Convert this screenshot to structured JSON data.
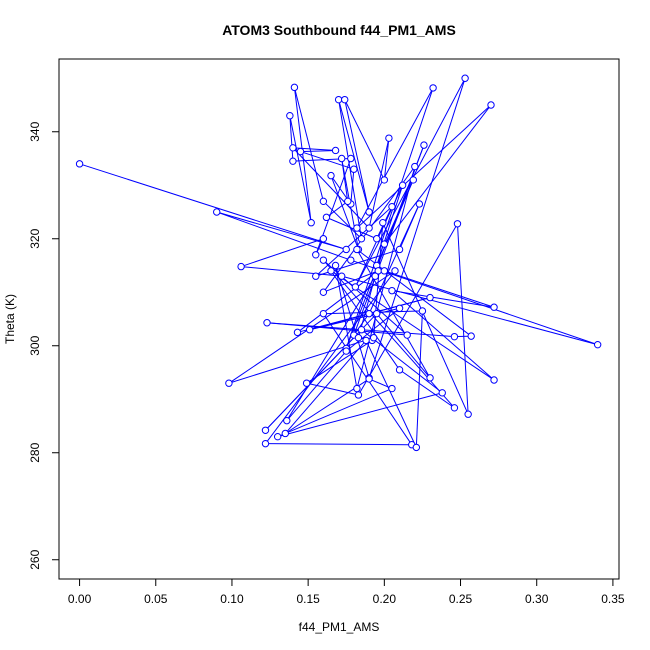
{
  "chart_data": {
    "type": "line",
    "title": "ATOM3 Southbound f44_PM1_AMS",
    "xlabel": "f44_PM1_AMS",
    "ylabel": "Theta (K)",
    "xlim": [
      -0.0135,
      0.354
    ],
    "ylim": [
      256.4,
      353.6
    ],
    "x_ticks": [
      0.0,
      0.05,
      0.1,
      0.15,
      0.2,
      0.25,
      0.3,
      0.35
    ],
    "x_tick_labels": [
      "0.00",
      "0.05",
      "0.10",
      "0.15",
      "0.20",
      "0.25",
      "0.30",
      "0.35"
    ],
    "y_ticks": [
      260,
      280,
      300,
      320,
      340
    ],
    "y_tick_labels": [
      "260",
      "280",
      "300",
      "320",
      "340"
    ],
    "grid": false,
    "colors": {
      "series": "#0000ff",
      "frame": "#000000",
      "background": "#ffffff"
    },
    "series": [
      {
        "marker": "open-circle",
        "points": [
          [
            0.0,
            334.0
          ],
          [
            0.175,
            318.0
          ],
          [
            0.09,
            325.0
          ],
          [
            0.178,
            316.0
          ],
          [
            0.34,
            300.2
          ],
          [
            0.172,
            313.0
          ],
          [
            0.106,
            314.8
          ],
          [
            0.16,
            320.0
          ],
          [
            0.155,
            317.0
          ],
          [
            0.178,
            335.0
          ],
          [
            0.14,
            334.5
          ],
          [
            0.138,
            343.0
          ],
          [
            0.152,
            323.0
          ],
          [
            0.141,
            348.3
          ],
          [
            0.16,
            327.0
          ],
          [
            0.185,
            320.0
          ],
          [
            0.17,
            346.0
          ],
          [
            0.19,
            325.0
          ],
          [
            0.174,
            346.0
          ],
          [
            0.2,
            331.0
          ],
          [
            0.203,
            338.8
          ],
          [
            0.19,
            322.0
          ],
          [
            0.14,
            337.0
          ],
          [
            0.168,
            336.5
          ],
          [
            0.145,
            336.3
          ],
          [
            0.18,
            333.0
          ],
          [
            0.178,
            326.5
          ],
          [
            0.165,
            331.8
          ],
          [
            0.183,
            318.0
          ],
          [
            0.172,
            335.0
          ],
          [
            0.176,
            327.0
          ],
          [
            0.162,
            324.0
          ],
          [
            0.195,
            320.0
          ],
          [
            0.205,
            326.0
          ],
          [
            0.155,
            313.0
          ],
          [
            0.21,
            318.0
          ],
          [
            0.223,
            326.5
          ],
          [
            0.19,
            306.0
          ],
          [
            0.18,
            302.0
          ],
          [
            0.226,
            337.5
          ],
          [
            0.175,
            299.5
          ],
          [
            0.232,
            348.2
          ],
          [
            0.182,
            322.0
          ],
          [
            0.27,
            345.0
          ],
          [
            0.2,
            319.0
          ],
          [
            0.219,
            331.0
          ],
          [
            0.195,
            315.0
          ],
          [
            0.212,
            330.0
          ],
          [
            0.181,
            311.0
          ],
          [
            0.253,
            350.0
          ],
          [
            0.19,
            294.0
          ],
          [
            0.168,
            315.0
          ],
          [
            0.182,
            292.0
          ],
          [
            0.22,
            333.5
          ],
          [
            0.16,
            310.0
          ],
          [
            0.196,
            314.0
          ],
          [
            0.143,
            302.5
          ],
          [
            0.23,
            309.0
          ],
          [
            0.151,
            303.0
          ],
          [
            0.21,
            307.0
          ],
          [
            0.175,
            299.0
          ],
          [
            0.136,
            286.0
          ],
          [
            0.194,
            313.0
          ],
          [
            0.183,
            301.5
          ],
          [
            0.192,
            301.0
          ],
          [
            0.149,
            293.0
          ],
          [
            0.183,
            290.8
          ],
          [
            0.248,
            322.8
          ],
          [
            0.255,
            287.2
          ],
          [
            0.199,
            323.0
          ],
          [
            0.193,
            301.5
          ],
          [
            0.098,
            293.0
          ],
          [
            0.207,
            314.0
          ],
          [
            0.122,
            281.7
          ],
          [
            0.218,
            281.5
          ],
          [
            0.16,
            306.0
          ],
          [
            0.225,
            306.5
          ],
          [
            0.221,
            281.0
          ],
          [
            0.188,
            301.0
          ],
          [
            0.135,
            283.6
          ],
          [
            0.19,
            293.8
          ],
          [
            0.205,
            292.0
          ],
          [
            0.13,
            283.0
          ],
          [
            0.238,
            291.2
          ],
          [
            0.185,
            303.0
          ],
          [
            0.122,
            284.2
          ],
          [
            0.195,
            306.0
          ],
          [
            0.23,
            294.0
          ],
          [
            0.182,
            318.0
          ],
          [
            0.257,
            301.8
          ],
          [
            0.246,
            301.7
          ],
          [
            0.123,
            304.3
          ],
          [
            0.215,
            302.0
          ],
          [
            0.16,
            316.0
          ],
          [
            0.246,
            288.4
          ],
          [
            0.21,
            295.5
          ],
          [
            0.165,
            314.0
          ],
          [
            0.272,
            293.6
          ],
          [
            0.205,
            310.3
          ],
          [
            0.272,
            307.2
          ],
          [
            0.2,
            314.0
          ]
        ]
      }
    ]
  }
}
